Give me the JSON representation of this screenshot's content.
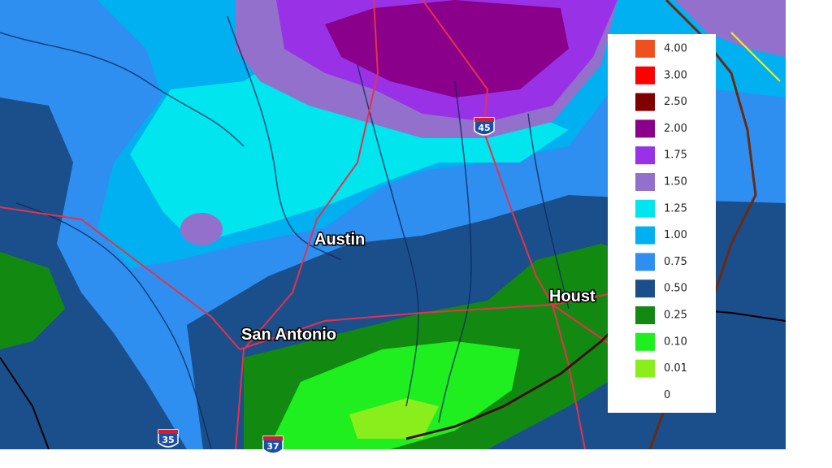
{
  "legend": {
    "items": [
      {
        "label": "4.00",
        "color": "#f0501e"
      },
      {
        "label": "3.00",
        "color": "#ff0000"
      },
      {
        "label": "2.50",
        "color": "#800000"
      },
      {
        "label": "2.00",
        "color": "#8b008b"
      },
      {
        "label": "1.75",
        "color": "#9932e6"
      },
      {
        "label": "1.50",
        "color": "#9370cc"
      },
      {
        "label": "1.25",
        "color": "#00e5ee"
      },
      {
        "label": "1.00",
        "color": "#00b0f0"
      },
      {
        "label": "0.75",
        "color": "#2e8ff0"
      },
      {
        "label": "0.50",
        "color": "#1b4f8c"
      },
      {
        "label": "0.25",
        "color": "#128a12"
      },
      {
        "label": "0.10",
        "color": "#1fee1f"
      },
      {
        "label": "0.01",
        "color": "#8aee1c"
      },
      {
        "label": "0"
      }
    ]
  },
  "cities": [
    {
      "label": "Austin"
    },
    {
      "label": "San Antonio"
    },
    {
      "label": "Houst"
    }
  ],
  "shields": [
    {
      "label": "45"
    },
    {
      "label": "35"
    },
    {
      "label": "37"
    }
  ]
}
